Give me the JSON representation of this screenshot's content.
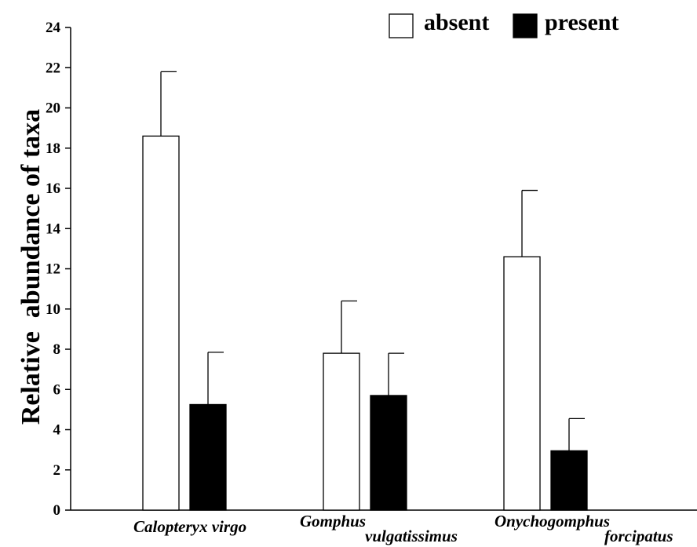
{
  "chart_data": {
    "type": "bar",
    "ylabel": "Relative  abundance of taxa",
    "xlabel": "",
    "ylim": [
      0,
      24
    ],
    "yticks": [
      0,
      2,
      4,
      6,
      8,
      10,
      12,
      14,
      16,
      18,
      20,
      22,
      24
    ],
    "categories": [
      {
        "lines": [
          "Calopteryx virgo"
        ]
      },
      {
        "lines": [
          "Gomphus",
          "vulgatissimus"
        ]
      },
      {
        "lines": [
          "Onychogomphus",
          "forcipatus"
        ]
      }
    ],
    "series": [
      {
        "name": "absent",
        "fill": "#ffffff",
        "values": [
          18.6,
          7.8,
          12.6
        ],
        "errors": [
          3.2,
          2.6,
          3.3
        ]
      },
      {
        "name": "present",
        "fill": "#000000",
        "values": [
          5.25,
          5.7,
          2.95
        ],
        "errors": [
          2.6,
          2.1,
          1.6
        ]
      }
    ],
    "legend_position": "top-right",
    "grid": false
  }
}
